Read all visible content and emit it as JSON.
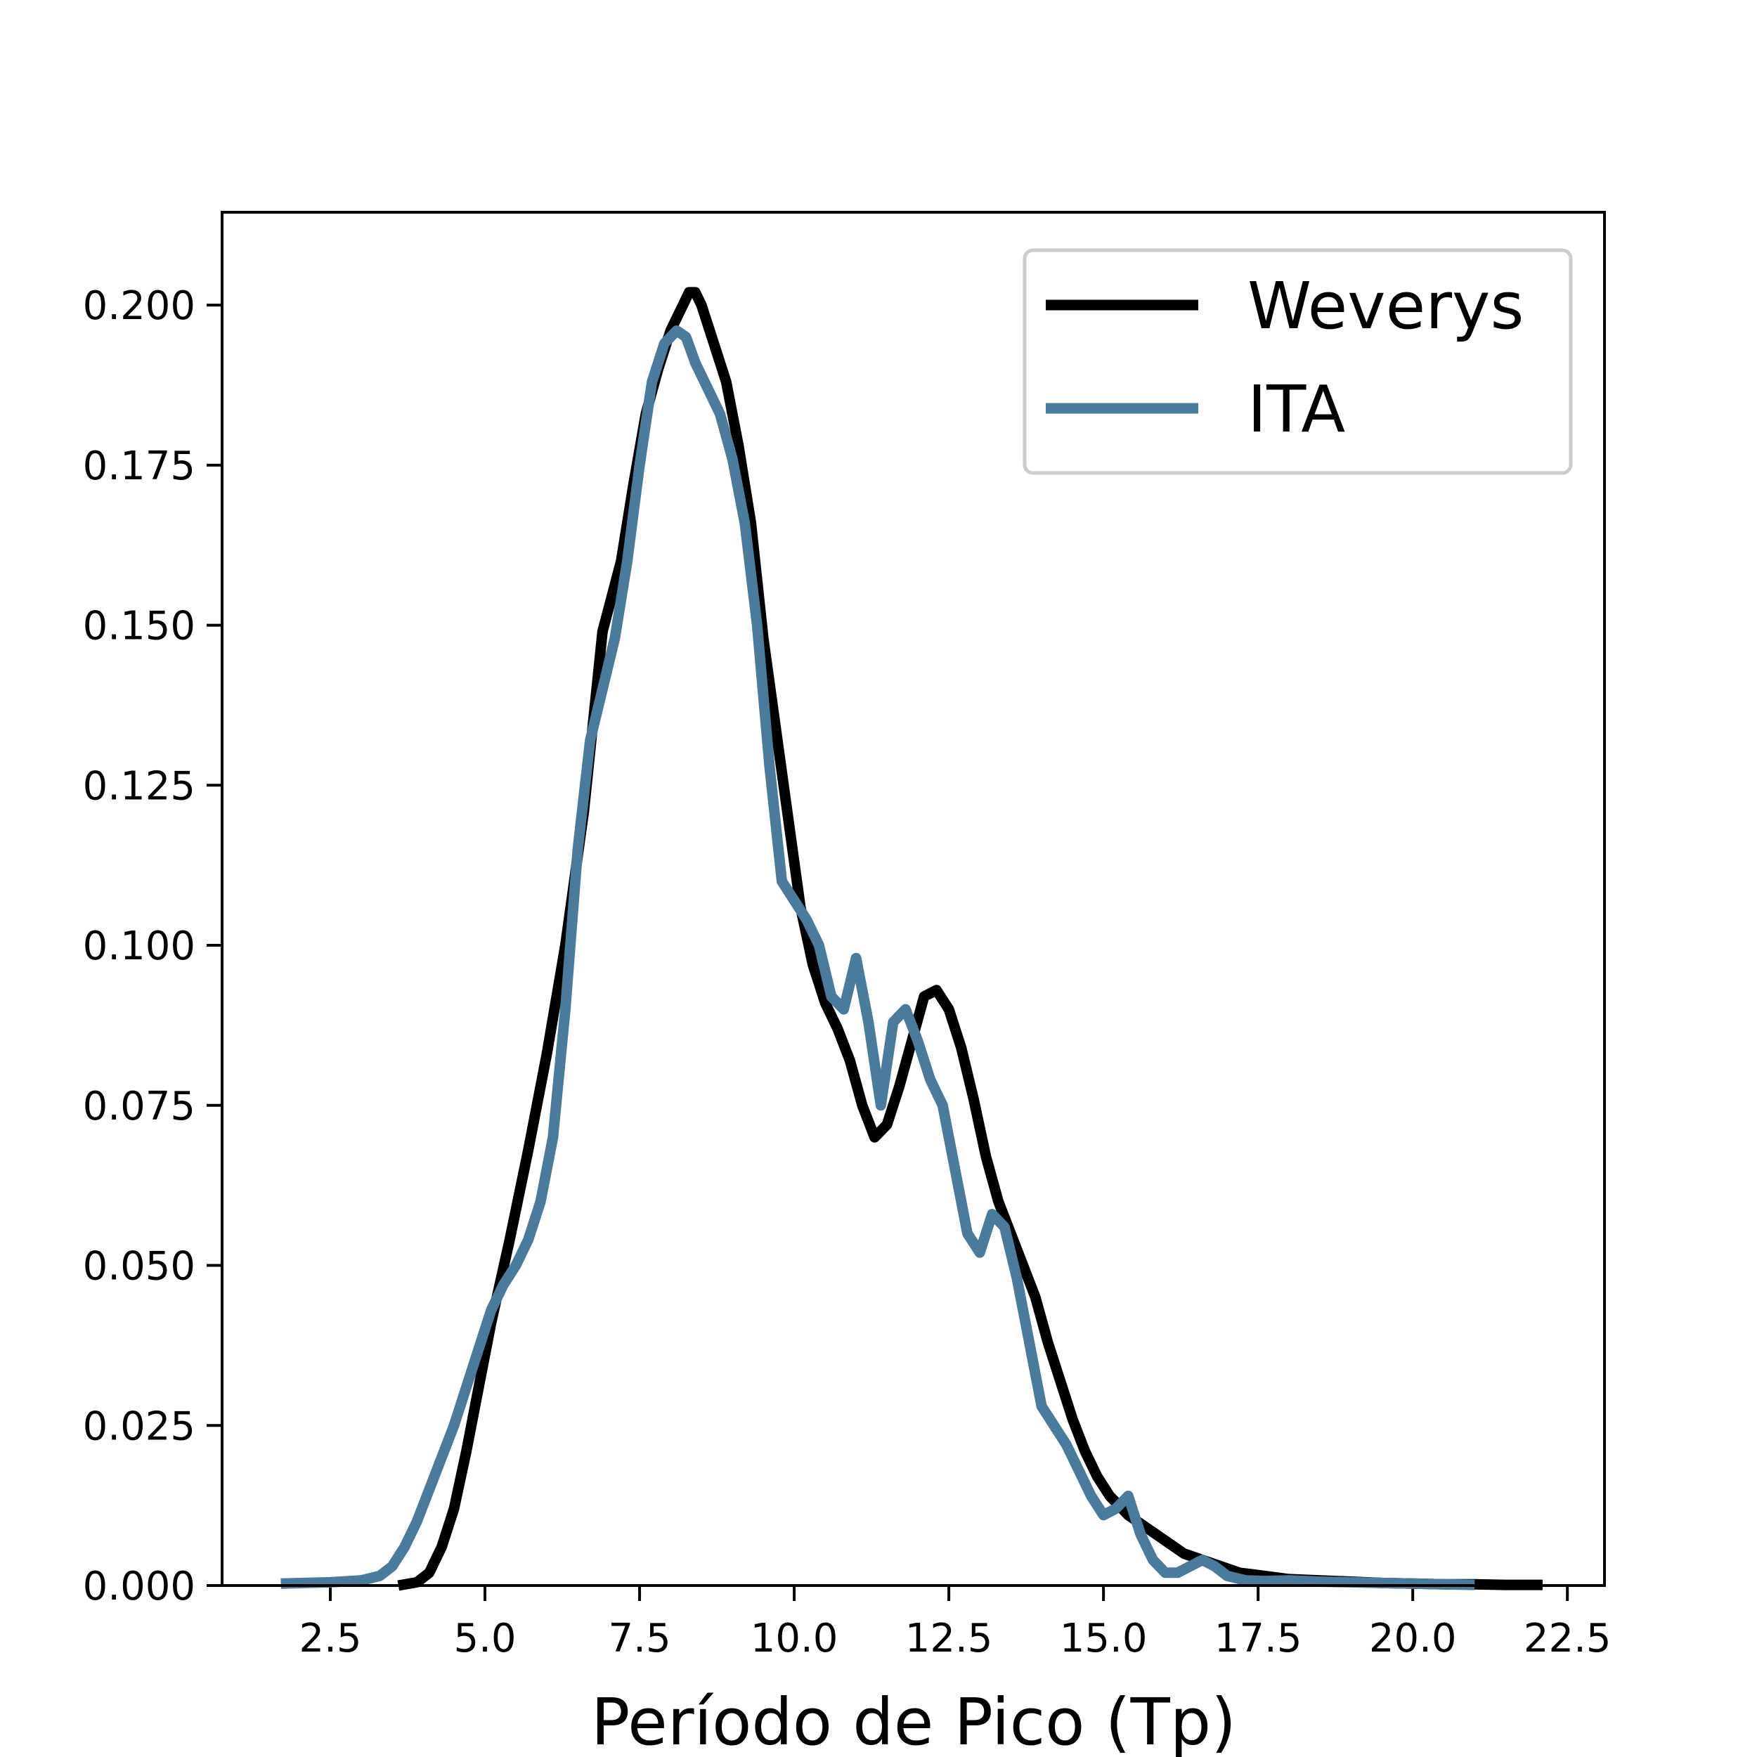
{
  "chart_data": {
    "type": "line",
    "title": "",
    "xlabel": "Período de Pico (Tp)",
    "ylabel": "",
    "xlim": [
      0.75,
      23.1
    ],
    "ylim": [
      0,
      0.2145
    ],
    "xticks": [
      2.5,
      5.0,
      7.5,
      10.0,
      12.5,
      15.0,
      17.5,
      20.0,
      22.5
    ],
    "xtick_labels": [
      "2.5",
      "5.0",
      "7.5",
      "10.0",
      "12.5",
      "15.0",
      "17.5",
      "20.0",
      "22.5"
    ],
    "yticks": [
      0.0,
      0.025,
      0.05,
      0.075,
      0.1,
      0.125,
      0.15,
      0.175,
      0.2
    ],
    "ytick_labels": [
      "0.000",
      "0.025",
      "0.050",
      "0.075",
      "0.100",
      "0.125",
      "0.150",
      "0.175",
      "0.200"
    ],
    "grid": false,
    "legend_position": "top-right",
    "series": [
      {
        "name": "Weverys",
        "color": "#000000",
        "x": [
          3.6,
          3.9,
          4.1,
          4.3,
          4.5,
          4.7,
          4.9,
          5.1,
          5.4,
          5.7,
          6.0,
          6.3,
          6.6,
          6.9,
          7.2,
          7.4,
          7.6,
          7.8,
          8.0,
          8.2,
          8.3,
          8.4,
          8.5,
          8.7,
          8.9,
          9.1,
          9.3,
          9.5,
          9.7,
          9.9,
          10.1,
          10.3,
          10.5,
          10.7,
          10.9,
          11.1,
          11.3,
          11.5,
          11.7,
          11.9,
          12.1,
          12.3,
          12.5,
          12.7,
          12.9,
          13.1,
          13.3,
          13.5,
          13.7,
          13.9,
          14.1,
          14.3,
          14.5,
          14.7,
          14.9,
          15.1,
          15.4,
          15.7,
          16.0,
          16.3,
          16.6,
          16.9,
          17.2,
          17.6,
          18.0,
          18.5,
          19.0,
          19.5,
          20.0,
          20.5,
          21.0,
          21.5,
          22.1
        ],
        "y": [
          0.0,
          0.0005,
          0.002,
          0.006,
          0.012,
          0.021,
          0.031,
          0.041,
          0.054,
          0.068,
          0.083,
          0.1,
          0.121,
          0.149,
          0.16,
          0.172,
          0.183,
          0.19,
          0.196,
          0.2,
          0.202,
          0.202,
          0.2,
          0.194,
          0.188,
          0.178,
          0.166,
          0.148,
          0.134,
          0.12,
          0.106,
          0.097,
          0.091,
          0.087,
          0.082,
          0.075,
          0.07,
          0.072,
          0.078,
          0.085,
          0.092,
          0.093,
          0.09,
          0.084,
          0.076,
          0.067,
          0.06,
          0.055,
          0.05,
          0.045,
          0.038,
          0.032,
          0.026,
          0.021,
          0.017,
          0.014,
          0.011,
          0.009,
          0.007,
          0.005,
          0.004,
          0.003,
          0.002,
          0.0015,
          0.001,
          0.0008,
          0.0006,
          0.0004,
          0.0003,
          0.0002,
          0.0002,
          0.0001,
          0.0001
        ]
      },
      {
        "name": "ITA",
        "color": "#4a7a9c",
        "x": [
          1.7,
          2.5,
          3.0,
          3.3,
          3.5,
          3.7,
          3.9,
          4.1,
          4.3,
          4.5,
          4.7,
          4.9,
          5.1,
          5.3,
          5.5,
          5.7,
          5.9,
          6.1,
          6.3,
          6.5,
          6.7,
          6.9,
          7.1,
          7.3,
          7.5,
          7.7,
          7.9,
          8.1,
          8.25,
          8.4,
          8.6,
          8.8,
          9.0,
          9.2,
          9.4,
          9.6,
          9.8,
          10.0,
          10.2,
          10.4,
          10.6,
          10.8,
          11.0,
          11.2,
          11.4,
          11.6,
          11.8,
          12.0,
          12.2,
          12.4,
          12.6,
          12.8,
          13.0,
          13.2,
          13.4,
          13.6,
          13.8,
          14.0,
          14.2,
          14.4,
          14.6,
          14.8,
          15.0,
          15.2,
          15.4,
          15.6,
          15.8,
          16.0,
          16.2,
          16.4,
          16.6,
          16.8,
          17.0,
          17.3,
          17.6,
          18.0,
          18.5,
          19.0,
          19.5,
          20.0,
          20.5,
          21.0
        ],
        "y": [
          0.0003,
          0.0005,
          0.0008,
          0.0015,
          0.003,
          0.006,
          0.01,
          0.015,
          0.02,
          0.025,
          0.031,
          0.037,
          0.043,
          0.047,
          0.05,
          0.054,
          0.06,
          0.07,
          0.09,
          0.115,
          0.132,
          0.14,
          0.148,
          0.16,
          0.175,
          0.188,
          0.194,
          0.196,
          0.195,
          0.191,
          0.187,
          0.183,
          0.176,
          0.166,
          0.15,
          0.128,
          0.11,
          0.107,
          0.104,
          0.1,
          0.092,
          0.09,
          0.098,
          0.088,
          0.075,
          0.088,
          0.09,
          0.085,
          0.079,
          0.075,
          0.065,
          0.055,
          0.052,
          0.058,
          0.056,
          0.048,
          0.038,
          0.028,
          0.025,
          0.022,
          0.018,
          0.014,
          0.011,
          0.012,
          0.014,
          0.008,
          0.004,
          0.002,
          0.002,
          0.003,
          0.004,
          0.003,
          0.0015,
          0.0008,
          0.0007,
          0.0008,
          0.0006,
          0.0005,
          0.0004,
          0.0003,
          0.0002,
          0.0001
        ]
      }
    ]
  }
}
